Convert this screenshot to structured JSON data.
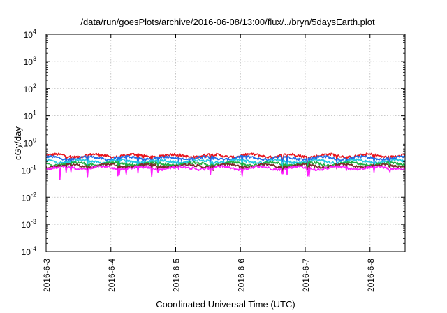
{
  "chart_data": {
    "type": "line",
    "title": "/data/run/goesPlots/archive/2016-06-08/13:00/flux/../bryn/5daysEarth.plot",
    "xlabel": "Coordinated Universal Time (UTC)",
    "ylabel": "cGy/day",
    "yscale": "log",
    "ylim": [
      0.0001,
      10000
    ],
    "yticks": [
      {
        "value": 0.0001,
        "base": "10",
        "exp": "-4"
      },
      {
        "value": 0.001,
        "base": "10",
        "exp": "-3"
      },
      {
        "value": 0.01,
        "base": "10",
        "exp": "-2"
      },
      {
        "value": 0.1,
        "base": "10",
        "exp": "-1"
      },
      {
        "value": 1,
        "base": "10",
        "exp": "0"
      },
      {
        "value": 10,
        "base": "10",
        "exp": "1"
      },
      {
        "value": 100,
        "base": "10",
        "exp": "2"
      },
      {
        "value": 1000,
        "base": "10",
        "exp": "3"
      },
      {
        "value": 10000,
        "base": "10",
        "exp": "4"
      }
    ],
    "xlim": [
      "2016-06-03 00:00",
      "2016-06-08 13:00"
    ],
    "xticks": [
      "2016-6-3",
      "2016-6-4",
      "2016-6-5",
      "2016-6-6",
      "2016-6-7",
      "2016-6-8"
    ],
    "grid": true,
    "legend": "none",
    "series": [
      {
        "color": "#e8141c",
        "level": 0.34,
        "dip": 0.5
      },
      {
        "color": "#1f6fe8",
        "level": 0.28,
        "dip": 0.55
      },
      {
        "color": "#20c8e0",
        "level": 0.21,
        "dip": 0.6
      },
      {
        "color": "#20b040",
        "level": 0.17,
        "dip": 0.65
      },
      {
        "color": "#7a2a2a",
        "level": 0.145,
        "dip": 0.7
      },
      {
        "color": "#ff20ff",
        "level": 0.12,
        "dip": 0.4
      }
    ]
  }
}
